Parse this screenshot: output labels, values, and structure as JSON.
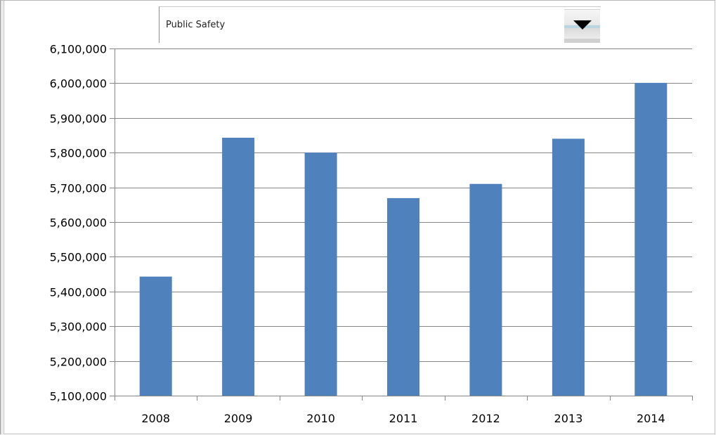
{
  "dropdown": {
    "selected": "Public Safety",
    "icon": "caret-down-icon"
  },
  "colors": {
    "bar": "#4f81bd",
    "grid": "#868686",
    "axis": "#868686"
  },
  "chart_data": {
    "type": "bar",
    "title": "",
    "xlabel": "",
    "ylabel": "",
    "categories": [
      "2008",
      "2009",
      "2010",
      "2011",
      "2012",
      "2013",
      "2014"
    ],
    "values": [
      5443000,
      5843000,
      5800000,
      5669000,
      5710000,
      5840000,
      6001000
    ],
    "ylim": [
      5100000,
      6100000
    ],
    "yticks": [
      5100000,
      5200000,
      5300000,
      5400000,
      5500000,
      5600000,
      5700000,
      5800000,
      5900000,
      6000000,
      6100000
    ],
    "ytick_labels": [
      "5,100,000",
      "5,200,000",
      "5,300,000",
      "5,400,000",
      "5,500,000",
      "5,600,000",
      "5,700,000",
      "5,800,000",
      "5,900,000",
      "6,000,000",
      "6,100,000"
    ],
    "grid": true,
    "legend": "none"
  }
}
